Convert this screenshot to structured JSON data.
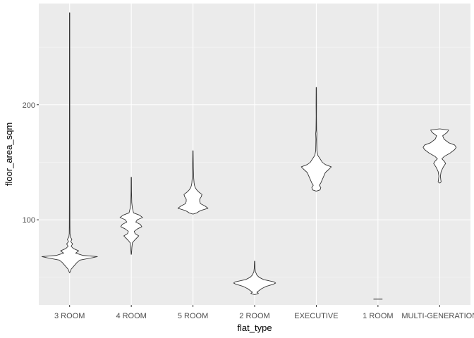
{
  "chart_data": {
    "type": "violin",
    "xlabel": "flat_type",
    "ylabel": "floor_area_sqm",
    "ylim": [
      26,
      288
    ],
    "y_ticks": [
      100,
      200
    ],
    "y_minor_ticks": [
      50,
      150,
      250
    ],
    "grid": true,
    "categories": [
      "3 ROOM",
      "4 ROOM",
      "5 ROOM",
      "2 ROOM",
      "EXECUTIVE",
      "1 ROOM",
      "MULTI-GENERATION"
    ],
    "violins": [
      {
        "category": "3 ROOM",
        "min": 54,
        "max": 280,
        "profile": [
          [
            54,
            0.2
          ],
          [
            57,
            2
          ],
          [
            60,
            6
          ],
          [
            63,
            10
          ],
          [
            65,
            14
          ],
          [
            67,
            30
          ],
          [
            68,
            37
          ],
          [
            69,
            18
          ],
          [
            71,
            8
          ],
          [
            73,
            12
          ],
          [
            75,
            5
          ],
          [
            77,
            2
          ],
          [
            79,
            4
          ],
          [
            81,
            1.5
          ],
          [
            83,
            3
          ],
          [
            85,
            1
          ],
          [
            88,
            0.5
          ],
          [
            95,
            0.4
          ],
          [
            120,
            0.3
          ],
          [
            200,
            0.25
          ],
          [
            280,
            0.2
          ]
        ]
      },
      {
        "category": "4 ROOM",
        "min": 70,
        "max": 137,
        "profile": [
          [
            70,
            0.2
          ],
          [
            76,
            0.8
          ],
          [
            80,
            1.5
          ],
          [
            82,
            4
          ],
          [
            84,
            7
          ],
          [
            86,
            10
          ],
          [
            88,
            5
          ],
          [
            90,
            4
          ],
          [
            92,
            8
          ],
          [
            94,
            14
          ],
          [
            96,
            12
          ],
          [
            98,
            6
          ],
          [
            100,
            8
          ],
          [
            102,
            15
          ],
          [
            104,
            11
          ],
          [
            106,
            3
          ],
          [
            110,
            1.5
          ],
          [
            115,
            0.6
          ],
          [
            125,
            0.3
          ],
          [
            137,
            0.2
          ]
        ]
      },
      {
        "category": "5 ROOM",
        "min": 105,
        "max": 160,
        "profile": [
          [
            105,
            0.5
          ],
          [
            106,
            5
          ],
          [
            108,
            10
          ],
          [
            110,
            20
          ],
          [
            112,
            16
          ],
          [
            114,
            10
          ],
          [
            116,
            9
          ],
          [
            118,
            9
          ],
          [
            120,
            11
          ],
          [
            122,
            12
          ],
          [
            124,
            8
          ],
          [
            126,
            5
          ],
          [
            128,
            3
          ],
          [
            130,
            2
          ],
          [
            132,
            1.5
          ],
          [
            136,
            1
          ],
          [
            140,
            0.8
          ],
          [
            145,
            0.5
          ],
          [
            160,
            0.2
          ]
        ]
      },
      {
        "category": "2 ROOM",
        "min": 35,
        "max": 64,
        "profile": [
          [
            35,
            0.5
          ],
          [
            36,
            5
          ],
          [
            37,
            3
          ],
          [
            38,
            5
          ],
          [
            40,
            9
          ],
          [
            42,
            15
          ],
          [
            44,
            25
          ],
          [
            45,
            28
          ],
          [
            46,
            26
          ],
          [
            48,
            12
          ],
          [
            50,
            6
          ],
          [
            52,
            3
          ],
          [
            55,
            1
          ],
          [
            58,
            0.5
          ],
          [
            64,
            0.2
          ]
        ]
      },
      {
        "category": "EXECUTIVE",
        "min": 125,
        "max": 215,
        "profile": [
          [
            125,
            0.5
          ],
          [
            126,
            5
          ],
          [
            128,
            6
          ],
          [
            130,
            4
          ],
          [
            132,
            6
          ],
          [
            135,
            8
          ],
          [
            138,
            10
          ],
          [
            141,
            12
          ],
          [
            144,
            17
          ],
          [
            146,
            20
          ],
          [
            148,
            12
          ],
          [
            150,
            8
          ],
          [
            152,
            6
          ],
          [
            154,
            4
          ],
          [
            156,
            2
          ],
          [
            160,
            0.8
          ],
          [
            170,
            0.5
          ],
          [
            175,
            0.8
          ],
          [
            178,
            0.4
          ],
          [
            190,
            0.2
          ],
          [
            200,
            0.3
          ],
          [
            215,
            0.2
          ]
        ]
      },
      {
        "category": "1 ROOM",
        "min": 31,
        "max": 31,
        "profile": [
          [
            31,
            6
          ],
          [
            31,
            6
          ]
        ]
      },
      {
        "category": "MULTI-GENERATION",
        "min": 132,
        "max": 179,
        "profile": [
          [
            132,
            0.5
          ],
          [
            133,
            2
          ],
          [
            135,
            1.5
          ],
          [
            138,
            1
          ],
          [
            142,
            2
          ],
          [
            146,
            5
          ],
          [
            149,
            8
          ],
          [
            151,
            6
          ],
          [
            153,
            3
          ],
          [
            155,
            6
          ],
          [
            158,
            14
          ],
          [
            161,
            20
          ],
          [
            163,
            22
          ],
          [
            165,
            20
          ],
          [
            167,
            12
          ],
          [
            170,
            6
          ],
          [
            173,
            4
          ],
          [
            176,
            10
          ],
          [
            178,
            12
          ],
          [
            179,
            0.5
          ]
        ]
      }
    ]
  }
}
